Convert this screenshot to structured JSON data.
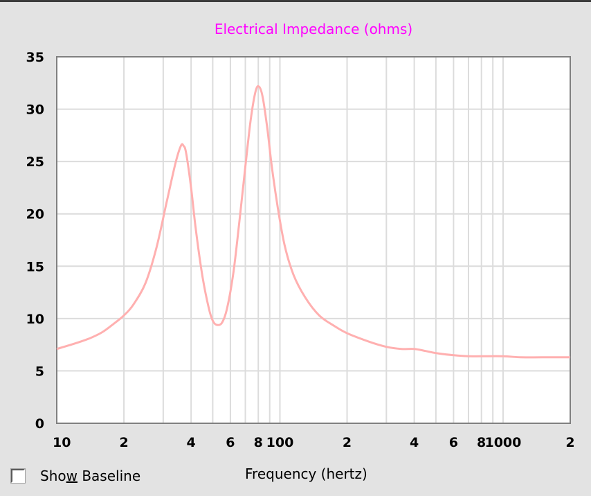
{
  "chart_data": {
    "type": "line",
    "title": "Electrical Impedance (ohms)",
    "xlabel": "Frequency (hertz)",
    "ylabel": "",
    "xscale": "log",
    "xlim": [
      10,
      2000
    ],
    "ylim": [
      0,
      35
    ],
    "yticks": [
      "0",
      "5",
      "10",
      "15",
      "20",
      "25",
      "30",
      "35"
    ],
    "xticks": [
      {
        "value": 10,
        "label": "10"
      },
      {
        "value": 20,
        "label": "2"
      },
      {
        "value": 40,
        "label": "4"
      },
      {
        "value": 60,
        "label": "6"
      },
      {
        "value": 80,
        "label": "8"
      },
      {
        "value": 100,
        "label": "100"
      },
      {
        "value": 200,
        "label": "2"
      },
      {
        "value": 400,
        "label": "4"
      },
      {
        "value": 600,
        "label": "6"
      },
      {
        "value": 800,
        "label": "8"
      },
      {
        "value": 1000,
        "label": "1000"
      },
      {
        "value": 2000,
        "label": "2"
      }
    ],
    "grid": true,
    "series": [
      {
        "color": "#ffb0b0",
        "x": [
          10,
          12,
          14,
          16,
          18,
          20,
          22,
          25,
          28,
          31,
          34,
          36,
          37,
          38,
          40,
          42,
          45,
          48,
          50,
          52,
          55,
          58,
          62,
          66,
          70,
          74,
          78,
          81,
          84,
          88,
          92,
          98,
          105,
          115,
          130,
          150,
          175,
          200,
          250,
          300,
          350,
          400,
          450,
          500,
          600,
          700,
          800,
          1000,
          1200,
          1500,
          2000
        ],
        "y": [
          7.1,
          7.6,
          8.1,
          8.7,
          9.5,
          10.3,
          11.3,
          13.4,
          16.8,
          21.0,
          24.8,
          26.5,
          26.5,
          25.8,
          22.5,
          18.5,
          14.0,
          11.0,
          9.8,
          9.4,
          9.6,
          11.0,
          14.5,
          19.5,
          24.5,
          29.0,
          31.8,
          32.1,
          31.0,
          28.0,
          24.5,
          20.5,
          17.0,
          14.2,
          12.0,
          10.3,
          9.3,
          8.6,
          7.8,
          7.3,
          7.1,
          7.1,
          6.9,
          6.7,
          6.5,
          6.4,
          6.4,
          6.4,
          6.3,
          6.3,
          6.3
        ]
      }
    ]
  },
  "controls": {
    "show_baseline_pre": "Sho",
    "show_baseline_mnemonic": "w",
    "show_baseline_post": " Baseline",
    "show_baseline_checked": false
  },
  "colors": {
    "background": "#e3e3e3",
    "plot_background": "#ffffff",
    "grid": "#dcdcdc",
    "title": "#ff00ff",
    "curve": "#ffb0b0"
  }
}
